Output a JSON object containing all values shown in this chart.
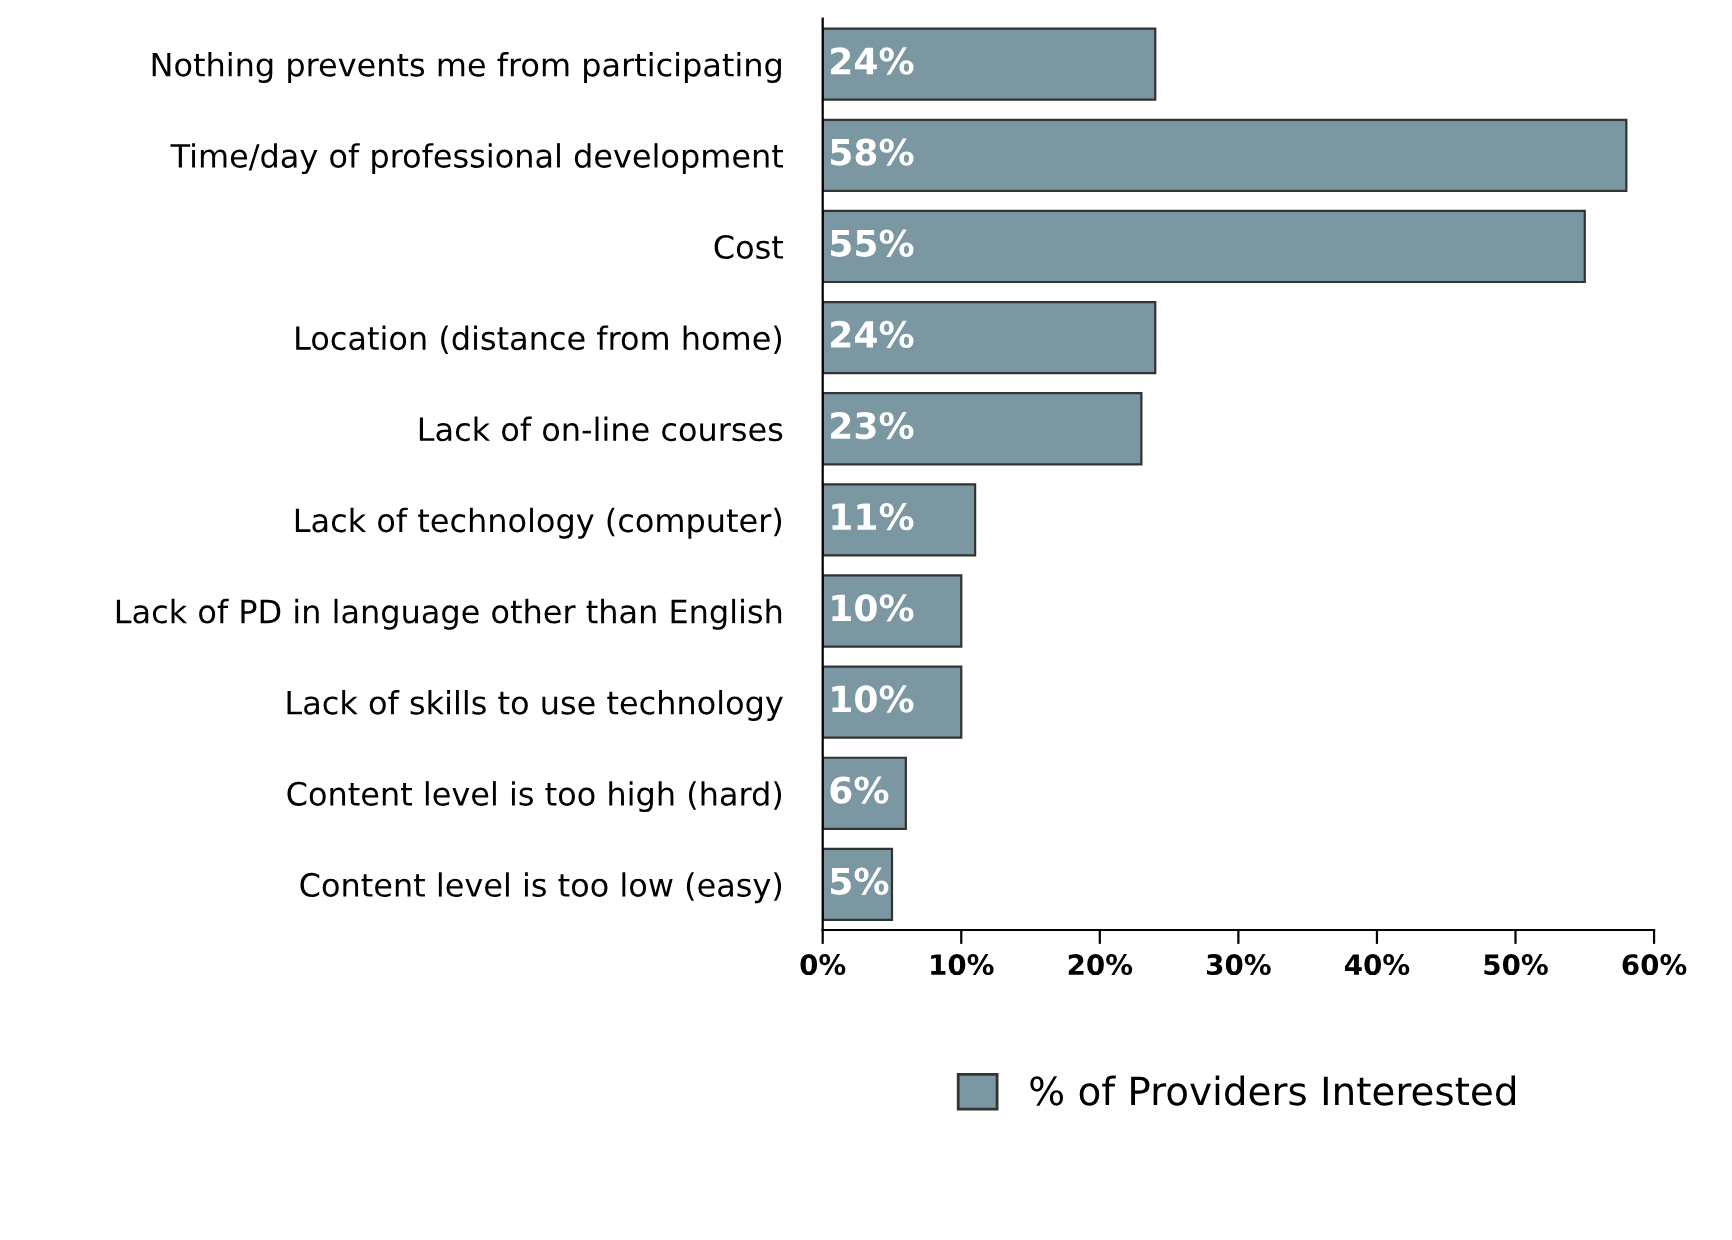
{
  "chart_data": {
    "type": "bar",
    "orientation": "horizontal",
    "categories": [
      "Nothing prevents me from participating",
      "Time/day of professional development",
      "Cost",
      "Location (distance from home)",
      "Lack of on-line courses",
      "Lack of technology (computer)",
      "Lack of PD in language other than English",
      "Lack of skills to use technology",
      "Content level is too high (hard)",
      "Content level is too low (easy)"
    ],
    "series": [
      {
        "name": "% of Providers Interested",
        "color": "#7b97a2",
        "values": [
          24,
          58,
          55,
          24,
          23,
          11,
          10,
          10,
          6,
          5
        ],
        "value_labels": [
          "24%",
          "58%",
          "55%",
          "24%",
          "23%",
          "11%",
          "10%",
          "10%",
          "6%",
          "5%"
        ]
      }
    ],
    "xlim": [
      0,
      60
    ],
    "xticks": [
      {
        "value": 0,
        "label": "0%"
      },
      {
        "value": 10,
        "label": "10%"
      },
      {
        "value": 20,
        "label": "20%"
      },
      {
        "value": 30,
        "label": "30%"
      },
      {
        "value": 40,
        "label": "40%"
      },
      {
        "value": 50,
        "label": "50%"
      },
      {
        "value": 60,
        "label": "60%"
      }
    ],
    "grid": false,
    "legend": "bottom"
  }
}
